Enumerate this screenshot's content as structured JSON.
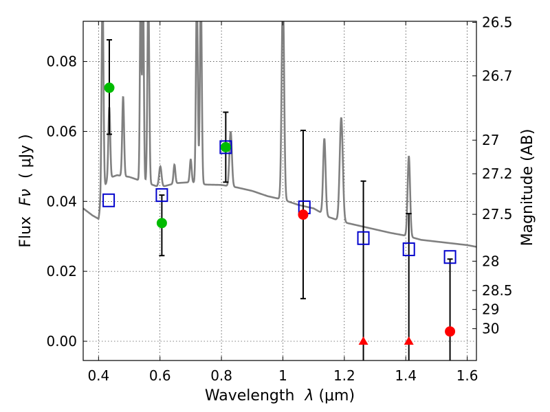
{
  "chart_data": {
    "type": "scatter",
    "xlabel_prefix": "Wavelength",
    "xlabel_lambda": "λ",
    "xlabel_unit": "(μm)",
    "ylabel_prefix": "Flux",
    "ylabel_symbol": "Fν",
    "ylabel_unit": "( μJy )",
    "y2label": "Magnitude (AB)",
    "xlim": [
      0.35,
      1.63
    ],
    "ylim": [
      -0.0055,
      0.0915
    ],
    "xticks": [
      0.4,
      0.6,
      0.8,
      1.0,
      1.2,
      1.4,
      1.6
    ],
    "xtick_labels": [
      "0.4",
      "0.6",
      "0.8",
      "1",
      "1.2",
      "1.4",
      "1.6"
    ],
    "yticks": [
      0.0,
      0.02,
      0.04,
      0.06,
      0.08
    ],
    "ytick_labels": [
      "0.00",
      "0.02",
      "0.04",
      "0.06",
      "0.08"
    ],
    "mag_ticks": [
      {
        "label": "26.5",
        "flux": 0.0912
      },
      {
        "label": "26.7",
        "flux": 0.0759
      },
      {
        "label": "27",
        "flux": 0.0575
      },
      {
        "label": "27.2",
        "flux": 0.0479
      },
      {
        "label": "27.5",
        "flux": 0.0363
      },
      {
        "label": "28",
        "flux": 0.0229
      },
      {
        "label": "28.5",
        "flux": 0.0145
      },
      {
        "label": "29",
        "flux": 0.0091
      },
      {
        "label": "30",
        "flux": 0.0036
      }
    ],
    "grid": true,
    "colors": {
      "detected": "#00bb00",
      "low_significance": "#ff0000",
      "model_box": "#0000cc",
      "template": "#808080",
      "errorbar": "#000000"
    },
    "detections": [
      {
        "x": 0.435,
        "y": 0.0725,
        "err_low": 0.0592,
        "err_high": 0.0862
      },
      {
        "x": 0.606,
        "y": 0.0338,
        "err_low": 0.0245,
        "err_high": 0.0418
      },
      {
        "x": 0.814,
        "y": 0.0555,
        "err_low": 0.0455,
        "err_high": 0.0655
      }
    ],
    "low_significance": [
      {
        "x": 1.066,
        "y": 0.0362,
        "err_low": 0.0122,
        "err_high": 0.0603
      }
    ],
    "upper_limits": [
      {
        "x": 1.262,
        "y": 0.0,
        "err_low": -0.0055,
        "err_high": 0.0458
      },
      {
        "x": 1.41,
        "y": 0.0,
        "err_low": -0.0055,
        "err_high": 0.0365
      },
      {
        "x": 1.544,
        "y": 0.0028,
        "err_low": -0.0055,
        "err_high": 0.0235
      }
    ],
    "model_photometry": [
      {
        "x": 0.433,
        "y": 0.0403
      },
      {
        "x": 0.606,
        "y": 0.0418
      },
      {
        "x": 0.814,
        "y": 0.0555
      },
      {
        "x": 1.07,
        "y": 0.0383
      },
      {
        "x": 1.262,
        "y": 0.0295
      },
      {
        "x": 1.41,
        "y": 0.0263
      },
      {
        "x": 1.544,
        "y": 0.0241
      }
    ],
    "template_continuum": [
      [
        0.35,
        0.038
      ],
      [
        0.38,
        0.036
      ],
      [
        0.4,
        0.035
      ],
      [
        0.41,
        0.0415
      ],
      [
        0.43,
        0.0465
      ],
      [
        0.46,
        0.0475
      ],
      [
        0.5,
        0.047
      ],
      [
        0.55,
        0.0455
      ],
      [
        0.6,
        0.044
      ],
      [
        0.65,
        0.0452
      ],
      [
        0.7,
        0.0455
      ],
      [
        0.75,
        0.0448
      ],
      [
        0.8,
        0.0447
      ],
      [
        0.85,
        0.044
      ],
      [
        0.9,
        0.043
      ],
      [
        0.95,
        0.0415
      ],
      [
        1.0,
        0.0405
      ],
      [
        1.05,
        0.039
      ],
      [
        1.1,
        0.038
      ],
      [
        1.15,
        0.0355
      ],
      [
        1.2,
        0.034
      ],
      [
        1.25,
        0.033
      ],
      [
        1.3,
        0.032
      ],
      [
        1.35,
        0.031
      ],
      [
        1.4,
        0.0302
      ],
      [
        1.45,
        0.029
      ],
      [
        1.5,
        0.0285
      ],
      [
        1.55,
        0.028
      ],
      [
        1.6,
        0.0275
      ],
      [
        1.63,
        0.027
      ]
    ],
    "template_lines": [
      {
        "x": 0.413,
        "peak": 0.1,
        "width": 0.003
      },
      {
        "x": 0.435,
        "peak": 0.067,
        "width": 0.003
      },
      {
        "x": 0.48,
        "peak": 0.07,
        "width": 0.003
      },
      {
        "x": 0.537,
        "peak": 0.1,
        "width": 0.0025
      },
      {
        "x": 0.545,
        "peak": 0.1,
        "width": 0.0025
      },
      {
        "x": 0.562,
        "peak": 0.1,
        "width": 0.003
      },
      {
        "x": 0.601,
        "peak": 0.05,
        "width": 0.004
      },
      {
        "x": 0.647,
        "peak": 0.0505,
        "width": 0.003
      },
      {
        "x": 0.7,
        "peak": 0.052,
        "width": 0.003
      },
      {
        "x": 0.72,
        "peak": 0.1,
        "width": 0.003
      },
      {
        "x": 0.733,
        "peak": 0.1,
        "width": 0.003
      },
      {
        "x": 0.83,
        "peak": 0.06,
        "width": 0.004
      },
      {
        "x": 1.0,
        "peak": 0.1,
        "width": 0.004
      },
      {
        "x": 1.135,
        "peak": 0.058,
        "width": 0.004
      },
      {
        "x": 1.19,
        "peak": 0.064,
        "width": 0.005
      },
      {
        "x": 1.41,
        "peak": 0.053,
        "width": 0.004
      }
    ]
  }
}
